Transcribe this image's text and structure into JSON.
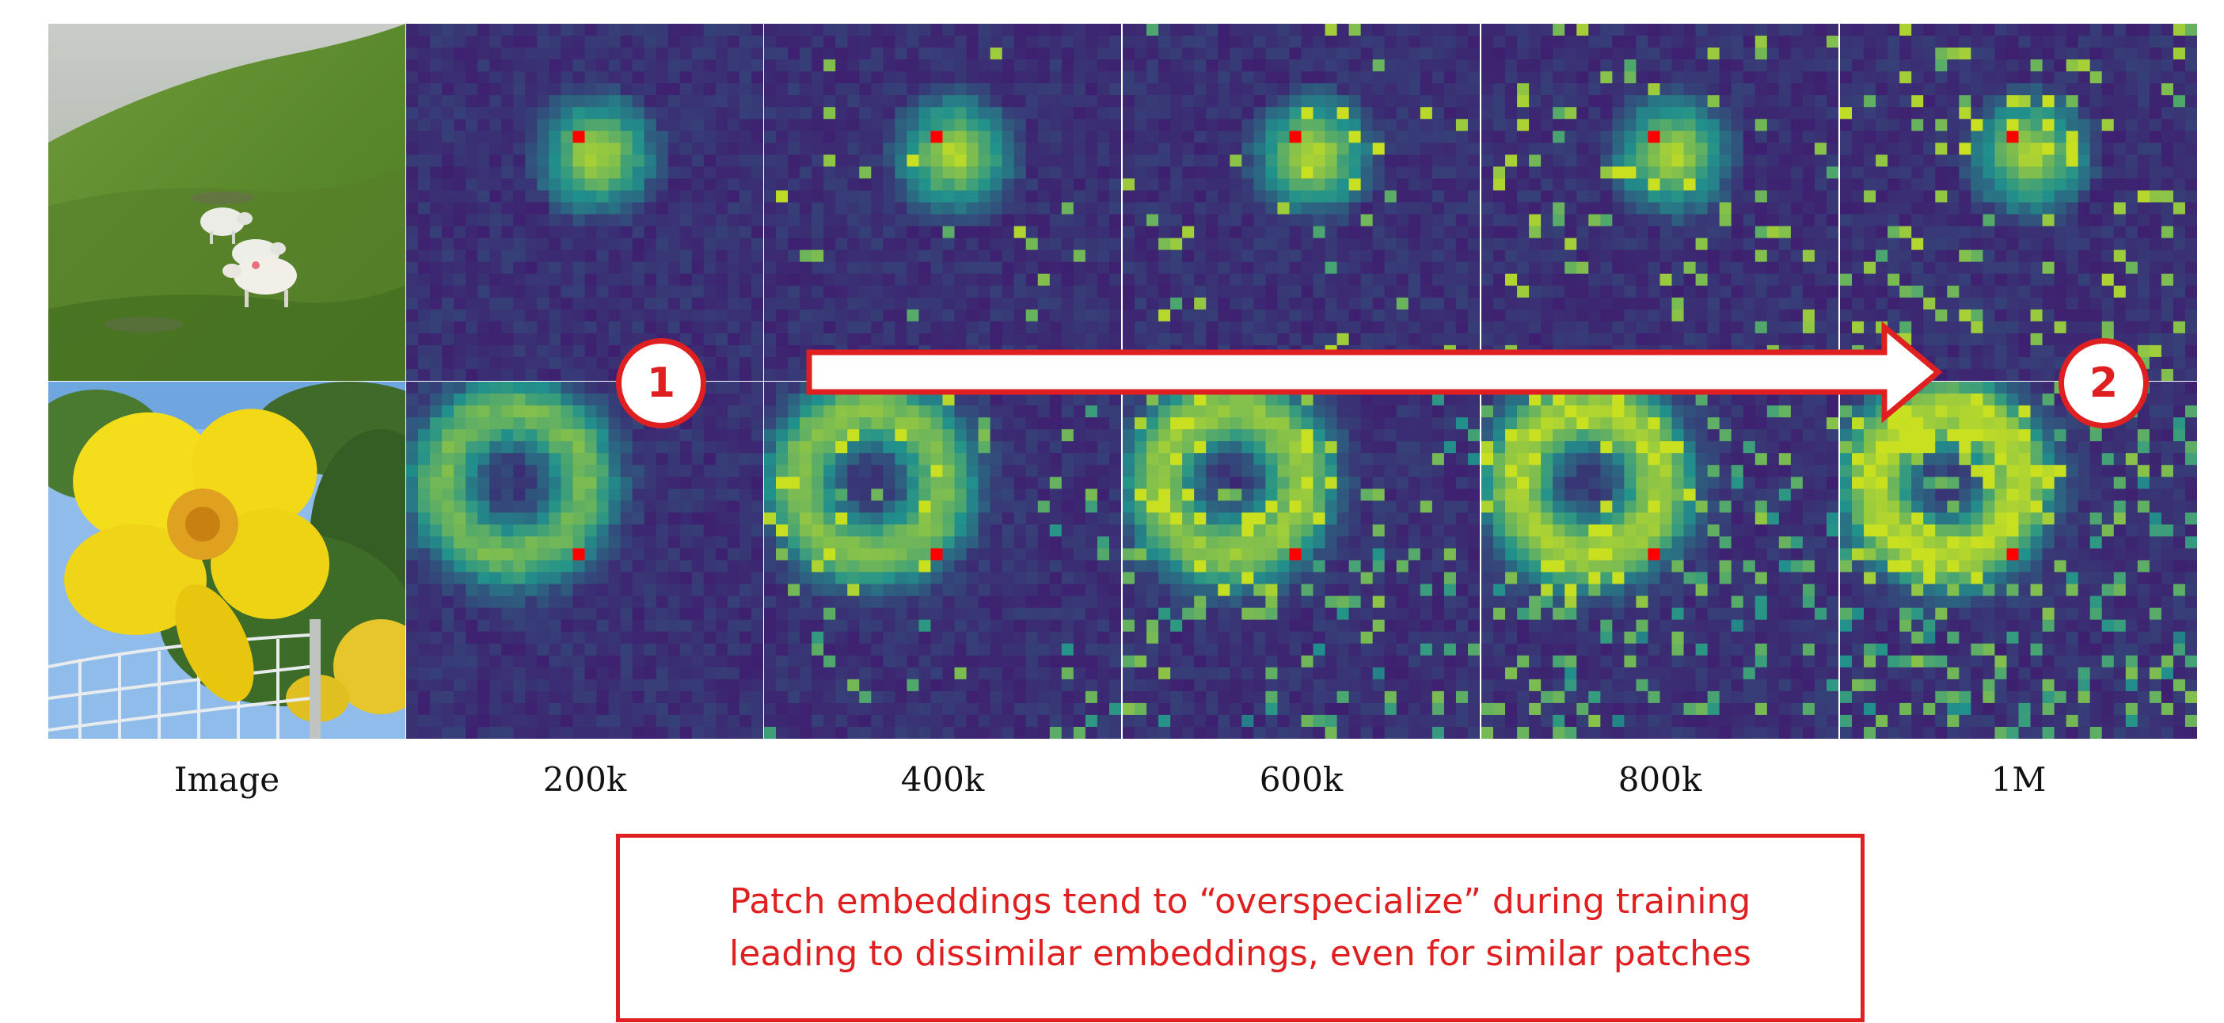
{
  "columns": [
    {
      "id": "image",
      "label": "Image"
    },
    {
      "id": "200k",
      "label": "200k"
    },
    {
      "id": "400k",
      "label": "400k"
    },
    {
      "id": "600k",
      "label": "600k"
    },
    {
      "id": "800k",
      "label": "800k"
    },
    {
      "id": "1M",
      "label": "1M"
    }
  ],
  "rows": [
    {
      "id": "sheep",
      "subject": "sheep-on-grassy-hillside"
    },
    {
      "id": "flower",
      "subject": "yellow-flower"
    }
  ],
  "stage_badges": [
    "1",
    "2"
  ],
  "callout": {
    "line1": "Patch embeddings tend to “overspecialize” during training",
    "line2": "leading to dissimilar embeddings, even for similar patches"
  },
  "colors": {
    "accent_red": "#e02020",
    "map_low": "#440a6b",
    "map_mid": "#21918c",
    "map_high": "#c8e020",
    "query_patch": "#ff0000"
  }
}
